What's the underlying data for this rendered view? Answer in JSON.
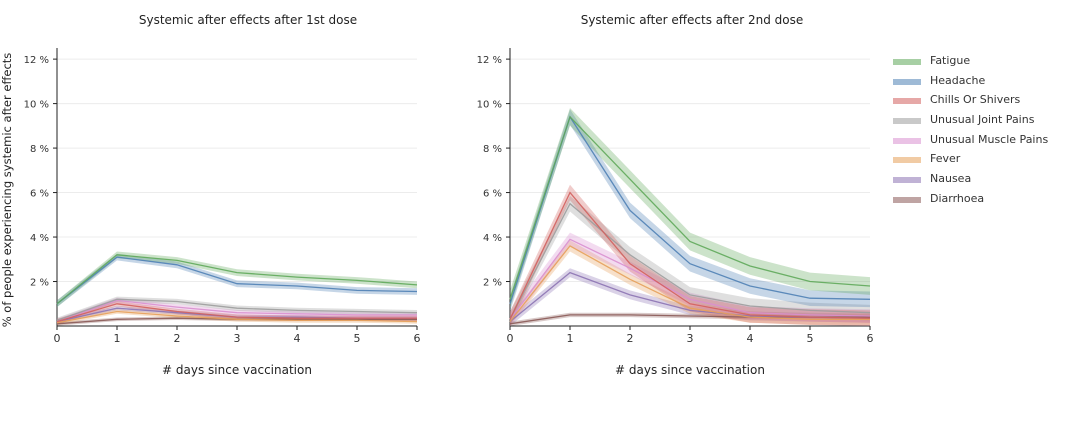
{
  "chart_data": [
    {
      "type": "line",
      "title": "Systemic after effects after 1st dose",
      "xlabel": "# days since vaccination",
      "ylabel": "% of people experiencing systemic after effects",
      "x": [
        0,
        1,
        2,
        3,
        4,
        5,
        6
      ],
      "xlim": [
        0,
        6
      ],
      "ylim": [
        0,
        12.5
      ],
      "yticks": [
        2,
        4,
        6,
        8,
        10,
        12
      ],
      "ytick_labels": [
        "2 %",
        "4 %",
        "6 %",
        "8 %",
        "10 %",
        "12 %"
      ],
      "grid": true,
      "series": [
        {
          "name": "Fatigue",
          "values": [
            1.0,
            3.2,
            2.95,
            2.4,
            2.2,
            2.05,
            1.85
          ],
          "band": 0.15
        },
        {
          "name": "Headache",
          "values": [
            1.0,
            3.1,
            2.75,
            1.9,
            1.8,
            1.6,
            1.55
          ],
          "band": 0.15
        },
        {
          "name": "Chills Or Shivers",
          "values": [
            0.2,
            1.0,
            0.65,
            0.4,
            0.35,
            0.35,
            0.35
          ],
          "band": 0.12
        },
        {
          "name": "Unusual Joint Pains",
          "values": [
            0.25,
            1.2,
            1.1,
            0.8,
            0.7,
            0.65,
            0.6
          ],
          "band": 0.12
        },
        {
          "name": "Unusual Muscle Pains",
          "values": [
            0.2,
            1.15,
            0.85,
            0.6,
            0.55,
            0.5,
            0.5
          ],
          "band": 0.12
        },
        {
          "name": "Fever",
          "values": [
            0.15,
            0.65,
            0.45,
            0.3,
            0.25,
            0.25,
            0.2
          ],
          "band": 0.1
        },
        {
          "name": "Nausea",
          "values": [
            0.2,
            0.8,
            0.6,
            0.4,
            0.4,
            0.35,
            0.35
          ],
          "band": 0.1
        },
        {
          "name": "Diarrhoea",
          "values": [
            0.1,
            0.3,
            0.35,
            0.3,
            0.3,
            0.3,
            0.3
          ],
          "band": 0.08
        }
      ]
    },
    {
      "type": "line",
      "title": "Systemic after effects after 2nd dose",
      "xlabel": "# days since vaccination",
      "ylabel": "",
      "x": [
        0,
        1,
        2,
        3,
        4,
        5,
        6
      ],
      "xlim": [
        0,
        6
      ],
      "ylim": [
        0,
        12.5
      ],
      "yticks": [
        2,
        4,
        6,
        8,
        10,
        12
      ],
      "ytick_labels": [
        "2 %",
        "4 %",
        "6 %",
        "8 %",
        "10 %",
        "12 %"
      ],
      "grid": true,
      "series": [
        {
          "name": "Fatigue",
          "values": [
            1.2,
            9.4,
            6.6,
            3.8,
            2.7,
            2.0,
            1.8
          ],
          "band": 0.4
        },
        {
          "name": "Headache",
          "values": [
            1.0,
            9.4,
            5.2,
            2.8,
            1.8,
            1.25,
            1.2
          ],
          "band": 0.35
        },
        {
          "name": "Chills Or Shivers",
          "values": [
            0.3,
            6.0,
            2.8,
            1.0,
            0.5,
            0.4,
            0.35
          ],
          "band": 0.35
        },
        {
          "name": "Unusual Joint Pains",
          "values": [
            0.3,
            5.5,
            3.2,
            1.4,
            0.9,
            0.7,
            0.6
          ],
          "band": 0.35
        },
        {
          "name": "Unusual Muscle Pains",
          "values": [
            0.3,
            3.9,
            2.6,
            1.2,
            0.6,
            0.5,
            0.45
          ],
          "band": 0.3
        },
        {
          "name": "Fever",
          "values": [
            0.2,
            3.6,
            2.1,
            0.8,
            0.4,
            0.3,
            0.3
          ],
          "band": 0.25
        },
        {
          "name": "Nausea",
          "values": [
            0.2,
            2.4,
            1.4,
            0.7,
            0.45,
            0.4,
            0.35
          ],
          "band": 0.2
        },
        {
          "name": "Diarrhoea",
          "values": [
            0.1,
            0.5,
            0.5,
            0.45,
            0.4,
            0.4,
            0.4
          ],
          "band": 0.1
        }
      ]
    }
  ],
  "legend": {
    "placement": "right",
    "items": [
      {
        "label": "Fatigue",
        "color": "#5fa85a"
      },
      {
        "label": "Headache",
        "color": "#4f81b5"
      },
      {
        "label": "Chills Or Shivers",
        "color": "#d1605e"
      },
      {
        "label": "Unusual Joint Pains",
        "color": "#9d9d9d"
      },
      {
        "label": "Unusual Muscle Pains",
        "color": "#d98fcf"
      },
      {
        "label": "Fever",
        "color": "#e6a05a"
      },
      {
        "label": "Nausea",
        "color": "#8c73b3"
      },
      {
        "label": "Diarrhoea",
        "color": "#8a5a57"
      }
    ]
  }
}
